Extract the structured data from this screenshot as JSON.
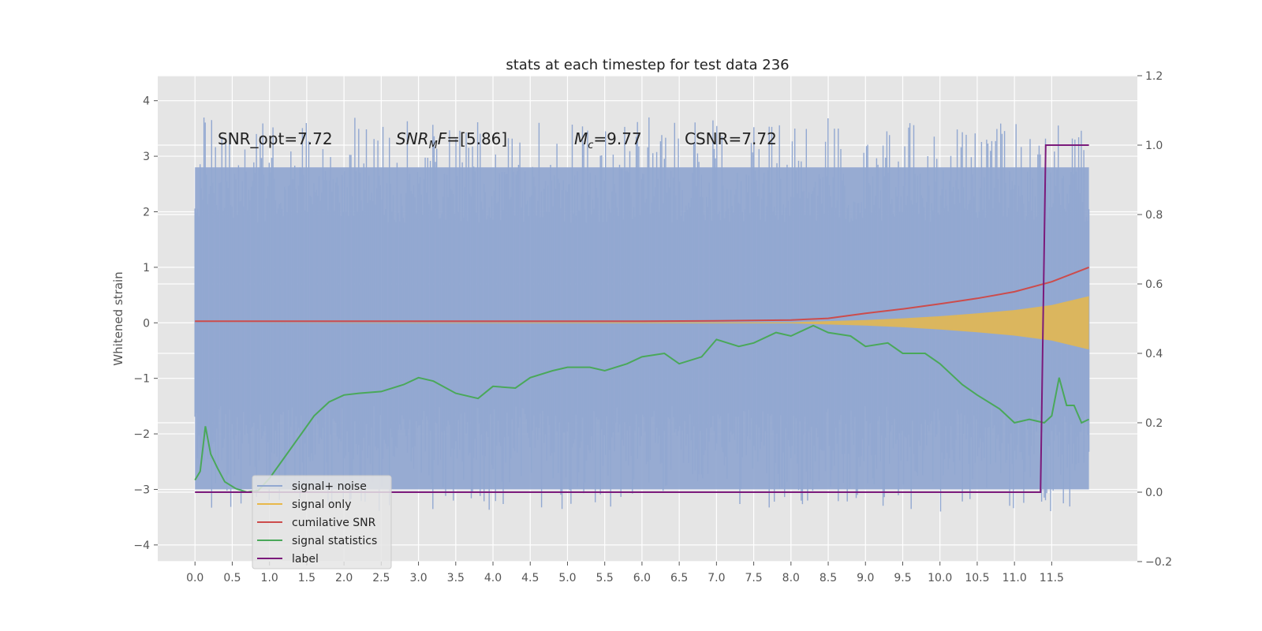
{
  "chart_data": {
    "type": "line",
    "title": "stats at each timestep for test data 236",
    "ylabel": "Whitened strain",
    "y2label": "",
    "xlim": [
      -0.5,
      12.65
    ],
    "ylim": [
      -4.3,
      4.45
    ],
    "y2lim": [
      -0.2,
      1.2
    ],
    "x_ticks": [
      0.0,
      0.5,
      1.0,
      1.5,
      2.0,
      2.5,
      3.0,
      3.5,
      4.0,
      4.5,
      5.0,
      5.5,
      6.0,
      6.5,
      7.0,
      7.5,
      8.0,
      8.5,
      9.0,
      9.5,
      10.0,
      10.5,
      11.0,
      11.5
    ],
    "x_tick_labels": [
      "0.0",
      "0.5",
      "1.0",
      "1.5",
      "2.0",
      "2.5",
      "3.0",
      "3.5",
      "4.0",
      "4.5",
      "5.0",
      "5.5",
      "6.0",
      "6.5",
      "7.0",
      "7.5",
      "8.0",
      "8.5",
      "9.0",
      "9.5",
      "10.0",
      "10.5",
      "11.0",
      "11.5"
    ],
    "y_ticks": [
      -4,
      -3,
      -2,
      -1,
      0,
      1,
      2,
      3,
      4
    ],
    "y_tick_labels": [
      "−4",
      "−3",
      "−2",
      "−1",
      "0",
      "1",
      "2",
      "3",
      "4"
    ],
    "y2_ticks": [
      -0.2,
      0.0,
      0.2,
      0.4,
      0.6,
      0.8,
      1.0,
      1.2
    ],
    "y2_tick_labels": [
      "−0.2",
      "0.0",
      "0.2",
      "0.4",
      "0.6",
      "0.8",
      "1.0",
      "1.2"
    ],
    "grid": true,
    "legend_position": "bottom-left",
    "annotations": [
      "SNR_opt=7.72",
      "SNR_M F=[5.86]",
      "M_c=9.77",
      "CSNR=7.72"
    ],
    "series": [
      {
        "name": "signal+ noise",
        "axis": "left",
        "color": "#92a8d1",
        "description_values": "dense noise, roughly -3.3 to 4.1",
        "x_range": [
          0.0,
          12.0
        ],
        "envelope": [
          -3.0,
          2.8
        ]
      },
      {
        "name": "signal only",
        "axis": "left",
        "color": "#e8b84a",
        "x": [
          0.0,
          8.0,
          8.5,
          9.0,
          9.5,
          10.0,
          10.5,
          11.0,
          11.5,
          12.0
        ],
        "upper": [
          0.0,
          0.01,
          0.03,
          0.05,
          0.08,
          0.12,
          0.17,
          0.23,
          0.32,
          0.48
        ],
        "lower": [
          0.0,
          -0.01,
          -0.03,
          -0.05,
          -0.08,
          -0.12,
          -0.17,
          -0.23,
          -0.32,
          -0.48
        ]
      },
      {
        "name": "cumilative SNR",
        "axis": "left",
        "color": "#cc4c4c",
        "x": [
          0.0,
          6.0,
          7.0,
          8.0,
          8.5,
          9.0,
          9.5,
          10.0,
          10.5,
          11.0,
          11.5,
          12.0
        ],
        "values": [
          0.03,
          0.03,
          0.035,
          0.05,
          0.08,
          0.17,
          0.25,
          0.34,
          0.44,
          0.56,
          0.74,
          1.0
        ]
      },
      {
        "name": "signal statistics",
        "axis": "right",
        "color": "#4aa85a",
        "x": [
          0.0,
          0.07,
          0.14,
          0.21,
          0.3,
          0.4,
          0.55,
          0.7,
          0.85,
          1.0,
          1.2,
          1.4,
          1.6,
          1.8,
          2.0,
          2.2,
          2.5,
          2.8,
          3.0,
          3.2,
          3.5,
          3.8,
          4.0,
          4.3,
          4.5,
          4.8,
          5.0,
          5.3,
          5.5,
          5.8,
          6.0,
          6.3,
          6.5,
          6.8,
          7.0,
          7.3,
          7.5,
          7.8,
          8.0,
          8.3,
          8.5,
          8.8,
          9.0,
          9.3,
          9.5,
          9.8,
          10.0,
          10.3,
          10.5,
          10.8,
          11.0,
          11.2,
          11.4,
          11.5,
          11.6,
          11.7,
          11.8,
          11.9,
          12.0
        ],
        "values": [
          0.035,
          0.06,
          0.19,
          0.11,
          0.07,
          0.03,
          0.01,
          0.0,
          0.005,
          0.04,
          0.1,
          0.16,
          0.22,
          0.26,
          0.28,
          0.285,
          0.29,
          0.31,
          0.33,
          0.32,
          0.285,
          0.27,
          0.305,
          0.3,
          0.33,
          0.35,
          0.36,
          0.36,
          0.35,
          0.37,
          0.39,
          0.4,
          0.37,
          0.39,
          0.44,
          0.42,
          0.43,
          0.46,
          0.45,
          0.48,
          0.46,
          0.45,
          0.42,
          0.43,
          0.4,
          0.4,
          0.37,
          0.31,
          0.28,
          0.24,
          0.2,
          0.21,
          0.2,
          0.22,
          0.33,
          0.25,
          0.25,
          0.2,
          0.21
        ]
      },
      {
        "name": "label",
        "axis": "right",
        "color": "#7b1a7b",
        "x": [
          0.0,
          11.35,
          11.42,
          12.0
        ],
        "values": [
          0.0,
          0.0,
          1.0,
          1.0
        ]
      }
    ]
  }
}
